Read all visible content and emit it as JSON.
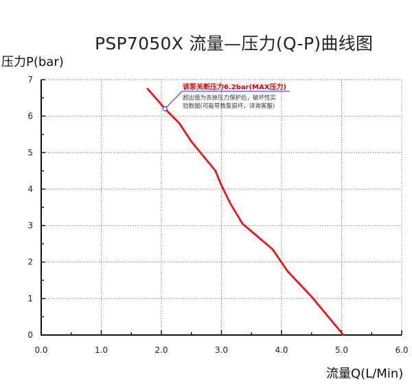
{
  "chart_data": {
    "type": "line",
    "title": "PSP7050X 流量—压力(Q-P)曲线图",
    "xlabel": "流量Q(L/Min)",
    "ylabel": "压力P(bar)",
    "xlim": [
      0,
      6
    ],
    "ylim": [
      0,
      7
    ],
    "x_ticks": [
      "0.0",
      "1.0",
      "2.0",
      "3.0",
      "4.0",
      "5.0",
      "6.0"
    ],
    "y_ticks": [
      "0",
      "1",
      "2",
      "3",
      "4",
      "5",
      "6",
      "7"
    ],
    "grid": true,
    "series": [
      {
        "color": "#e8141b",
        "x": [
          1.77,
          2.06,
          2.3,
          2.5,
          2.7,
          2.9,
          3.0,
          3.15,
          3.35,
          3.6,
          3.85,
          4.1,
          4.5,
          5.03
        ],
        "y": [
          6.75,
          6.2,
          5.8,
          5.3,
          4.9,
          4.5,
          4.1,
          3.6,
          3.05,
          2.7,
          2.35,
          1.75,
          1.05,
          0.0
        ]
      }
    ],
    "annotation": {
      "title": "该泵关断压力6.2bar(MAX压力)",
      "body_line1": "超出值为去掉压力保护后，破坏性实",
      "body_line2": "验数据(可能导致泵损坏，详询客服)",
      "point": {
        "x": 2.06,
        "y": 6.2
      },
      "title_color": "#e10000",
      "line_color": "#1a1aff"
    }
  }
}
